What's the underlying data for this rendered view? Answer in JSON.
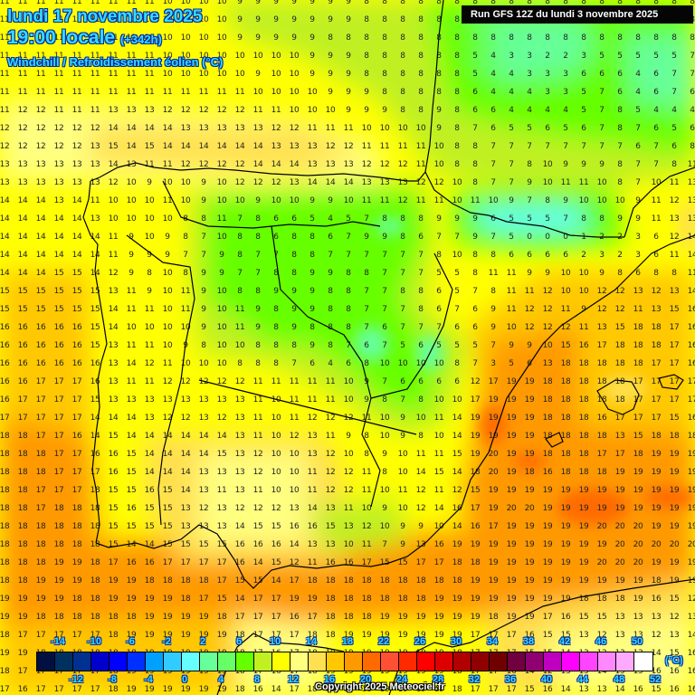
{
  "header": {
    "date": "lundi 17 novembre 2025",
    "time": "19:00 locale",
    "lead": "(+342h)",
    "parameter": "Windchill / Refroidissement éolien (°C)",
    "run": "Run GFS 12Z du lundi 3 novembre 2025"
  },
  "footer": {
    "copyright": "Copyright 2025 Meteociel.fr",
    "unit": "(°C)"
  },
  "colorbar": {
    "colors": [
      "#001040",
      "#003060",
      "#003090",
      "#0000cc",
      "#0000ff",
      "#0030ff",
      "#00a0ff",
      "#30ccff",
      "#66ffff",
      "#66ff99",
      "#66ff66",
      "#66ff00",
      "#c0f020",
      "#ffff00",
      "#ffff80",
      "#ffe050",
      "#ffc800",
      "#ff9900",
      "#ff6a00",
      "#ff5033",
      "#ff2a00",
      "#ff0000",
      "#dd0000",
      "#b00000",
      "#900000",
      "#700000",
      "#700040",
      "#900070",
      "#c000c0",
      "#ff00ff",
      "#ff44ff",
      "#ff88ff",
      "#ffaaff",
      "#ffffff"
    ],
    "top_ticks": [
      "-14",
      "-10",
      "-6",
      "-2",
      "2",
      "6",
      "10",
      "14",
      "18",
      "22",
      "26",
      "30",
      "34",
      "38",
      "42",
      "46",
      "50"
    ],
    "bottom_ticks": [
      "-12",
      "-8",
      "-4",
      "0",
      "4",
      "8",
      "12",
      "16",
      "20",
      "24",
      "28",
      "32",
      "36",
      "40",
      "44",
      "48",
      "52"
    ]
  },
  "grid": {
    "rows": [
      "11 11 11 11 11 11 11 11 11 10 10 10 10 9 9 9 9 9 9 9 8 8 8 8 8 8 8 8 8 8 8 8 8 8 8 8 8 8 8",
      "11 11 11 11 11 11 11 11 11 10 10 10 10 9 9 9 9 9 9 9 8 8 8 8 8 8 8 8 8 8 8 8 8 8 8 8 8 8 8",
      "11 11 11 11 11 11 11 11 10 10 10 10 10 9 9 9 9 9 8 8 8 8 8 8 8 8 8 8 8 8 8 8 8 8 8 8 8 8 8",
      "11 11 11 11 11 11 11 11 11 10 10 10 10 10 10 10 10 9 9 9 8 8 8 8 8 8 5 4 3 3 2 2 3 5 5 5 5 5 7",
      "11 11 11 11 11 11 11 11 11 10 10 10 10 10 9 10 10 9 9 9 8 8 8 8 8 8 5 4 4 3 3 3 6 6 6 4 6 7 7",
      "11 11 11 11 11 11 11 11 11 11 11 11 11 11 10 10 10 10 9 9 9 8 8 8 8 8 6 4 4 4 3 3 5 7 6 4 6 7 6",
      "11 12 12 11 11 11 13 13 13 12 12 12 12 12 11 11 10 10 10 9 9 9 8 8 9 8 6 6 4 4 4 4 5 7 8 5 4 4 4",
      "12 12 12 12 12 12 14 14 14 14 13 13 13 13 13 12 12 11 11 11 10 10 10 10 9 8 7 6 5 5 6 5 6 7 8 7 6 5 6",
      "12 12 12 12 12 13 15 14 15 14 14 14 14 14 14 13 13 13 12 12 11 11 11 11 10 8 8 7 7 7 7 7 7 7 7 6 7 6 8",
      "13 13 13 13 13 13 14 13 11 11 12 12 12 12 14 14 14 13 13 13 12 12 12 11 10 8 8 7 7 8 10 9 9 9 8 7 7 8 11",
      "13 13 13 13 13 13 12 10 9 10 10 9 10 12 12 12 13 14 14 14 13 13 13 12 12 10 8 7 7 9 10 11 11 10 8 7 10 11 13",
      "14 14 14 13 14 11 10 10 10 11 10 9 10 10 9 10 10 9 9 10 11 11 12 11 11 10 11 10 9 7 8 9 10 10 10 9 11 12 13",
      "14 14 14 14 14 13 10 10 10 10 8 8 11 7 8 6 6 5 4 5 7 8 8 8 9 9 9 6 5 5 5 7 8 8 9 9 11 13 13",
      "14 14 14 14 14 14 11 9 10 9 8 7 10 8 8 6 8 8 6 7 9 9 8 6 7 7 9 7 5 0 0 0 1 2 2 3 6 12 14",
      "14 14 14 14 14 14 11 9 9 9 7 7 9 8 7 7 8 8 7 7 7 7 7 7 8 10 8 8 6 6 6 6 2 3 2 3 6 11 14",
      "14 14 14 15 15 14 12 9 8 10 8 9 9 7 7 8 8 9 9 8 8 7 7 7 5 5 8 11 11 9 9 10 10 9 8 6 8 8 11",
      "15 15 15 15 15 15 13 11 9 10 11 9 10 8 8 9 9 9 8 8 7 7 8 8 6 5 7 8 11 11 12 10 10 12 12 13 12 13 14",
      "15 15 15 15 15 15 14 11 11 10 11 9 10 11 9 8 9 9 8 8 7 7 7 8 6 7 6 9 11 12 12 11 9 12 12 11 13 15 16",
      "16 16 16 16 16 15 14 10 10 10 10 9 10 11 9 8 9 8 8 8 7 6 7 7 7 6 6 9 10 12 12 12 11 13 15 18 18 17 16",
      "16 16 16 16 16 15 13 11 11 10 9 8 10 10 8 8 8 9 8 7 6 7 5 6 5 5 5 7 9 9 10 15 16 17 18 18 18 17 16",
      "16 16 16 16 16 16 13 14 12 11 10 10 10 8 8 8 7 6 4 6 8 10 10 10 10 8 7 3 5 6 13 18 18 18 18 18 17 17 16",
      "16 16 17 17 17 16 13 11 11 12 12 12 12 12 11 11 11 11 11 10 9 7 6 6 6 6 12 17 19 19 18 18 18 18 18 17 17 17 17",
      "16 17 17 17 17 15 13 13 13 13 13 13 13 13 11 10 11 11 11 10 9 8 7 8 10 10 17 19 19 19 18 18 18 18 18 17 17 17 17",
      "17 17 17 17 17 14 14 14 13 12 12 13 12 13 11 10 11 12 12 12 11 10 9 10 11 14 19 19 19 19 18 18 18 16 17 17 17 15 16",
      "18 18 17 17 16 14 15 14 14 14 14 14 14 13 11 10 12 13 11 9 8 10 9 8 10 14 19 19 19 19 18 18 18 18 13 15 18 18 18",
      "18 18 18 17 17 16 16 15 14 14 14 14 15 13 12 10 10 13 12 10 8 9 10 11 11 15 19 20 19 19 18 18 18 17 17 18 19 19 19",
      "18 18 18 17 17 17 16 15 14 14 14 13 13 13 12 10 10 11 12 12 11 8 10 14 15 14 18 20 19 18 16 18 18 18 19 19 19 19 19",
      "18 18 17 17 17 18 15 15 16 15 14 13 11 13 11 10 10 11 12 12 11 10 11 12 11 12 15 19 19 19 19 19 19 19 19 19 19 19 19",
      "18 18 17 18 18 18 15 16 15 15 13 12 13 12 12 12 13 14 13 11 10 9 10 12 14 16 17 19 20 20 19 19 19 19 19 19 19 19 19",
      "18 18 18 18 18 18 15 15 15 15 13 13 13 14 15 15 16 16 15 13 12 10 9 9 10 14 16 17 19 19 19 19 19 20 20 20 19 19 19",
      "18 18 18 18 18 18 15 14 14 15 15 15 15 16 16 16 14 13 13 10 11 7 9 13 16 19 19 19 19 19 19 19 19 19 20 20 20 20 20",
      "18 18 18 19 19 18 17 16 16 17 17 17 17 16 14 15 12 11 16 16 17 15 15 17 17 18 18 19 19 19 19 19 19 20 20 20 19 19 19",
      "18 18 19 19 19 18 19 19 18 18 18 18 17 15 15 14 17 18 18 18 18 18 18 18 18 18 19 19 19 19 19 19 19 19 19 19 18 19 19",
      "19 19 19 19 18 18 19 19 19 19 18 17 15 14 17 17 19 19 18 18 18 18 18 18 19 19 19 19 19 19 19 19 18 18 18 19 16 15 12",
      "19 19 18 18 18 18 18 18 19 19 19 19 18 17 17 17 16 17 18 18 18 19 19 19 19 19 19 18 19 19 17 16 15 15 13 13 13 12 13",
      "18 17 17 17 17 17 18 19 19 19 19 19 19 18 17 17 17 18 18 19 19 19 19 19 19 19 17 17 17 16 15 15 13 12 13 13 12 13 14",
      "19 19 18 18 18 18 18 18 19 19 19 19 19 18 17 16 17 18 19 19 19 19 19 19 19 18 17 17 17 15 15 14 13 12 13 13 14 15 16",
      "18 17 17 17 17 17 18 19 19 19 19 19 19 18 17 16 17 18 19 19 19 19 19 19 19 18 17 17 16 14 12 13 15 14 15 15 16 16 16",
      "17 16 17 17 17 17 18 19 19 19 19 19 19 18 16 14 17 18 18 18 18 19 19 19 19 18 17 17 17 15 16 14 13 13 14 16 15 16 16"
    ]
  }
}
